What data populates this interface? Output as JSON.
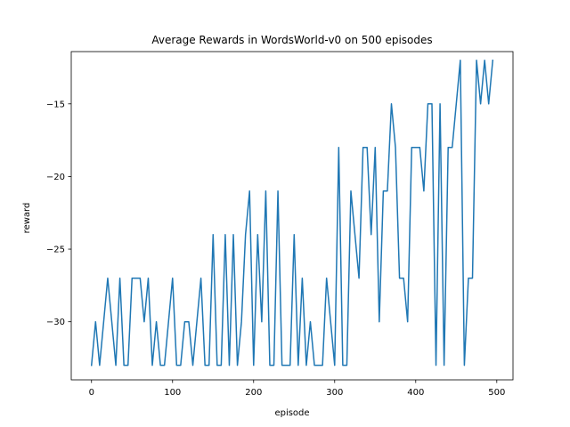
{
  "chart_data": {
    "type": "line",
    "title": "Average Rewards in WordsWorld-v0 on 500 episodes",
    "xlabel": "episode",
    "ylabel": "reward",
    "xlim": [
      -25,
      520
    ],
    "ylim": [
      -34,
      -11.4
    ],
    "xticks": [
      0,
      100,
      200,
      300,
      400,
      500
    ],
    "yticks": [
      -30,
      -25,
      -20,
      -15
    ],
    "ytick_labels": [
      "−30",
      "−25",
      "−20",
      "−15"
    ],
    "grid": false,
    "color": "#1f77b4",
    "series": [
      {
        "x": [
          0,
          5,
          10,
          15,
          20,
          25,
          30,
          35,
          40,
          45,
          50,
          55,
          60,
          65,
          70,
          75,
          80,
          85,
          90,
          95,
          100,
          105,
          110,
          115,
          120,
          125,
          130,
          135,
          140,
          145,
          150,
          155,
          160,
          165,
          170,
          175,
          180,
          185,
          190,
          195,
          200,
          205,
          210,
          215,
          220,
          225,
          230,
          235,
          240,
          245,
          250,
          255,
          260,
          265,
          270,
          275,
          280,
          285,
          290,
          295,
          300,
          305,
          310,
          315,
          320,
          325,
          330,
          335,
          340,
          345,
          350,
          355,
          360,
          365,
          370,
          375,
          380,
          385,
          390,
          395,
          400,
          405,
          410,
          415,
          420,
          425,
          430,
          435,
          440,
          445,
          450,
          455,
          460,
          465,
          470,
          475,
          480,
          485,
          490,
          495
        ],
        "y": [
          -33,
          -30,
          -33,
          -30,
          -27,
          -30,
          -33,
          -27,
          -33,
          -33,
          -27,
          -27,
          -27,
          -30,
          -27,
          -33,
          -30,
          -33,
          -33,
          -30,
          -27,
          -33,
          -33,
          -30,
          -30,
          -33,
          -30,
          -27,
          -33,
          -33,
          -24,
          -33,
          -33,
          -24,
          -33,
          -24,
          -33,
          -30,
          -24,
          -21,
          -33,
          -24,
          -30,
          -21,
          -33,
          -33,
          -21,
          -33,
          -33,
          -33,
          -24,
          -33,
          -27,
          -33,
          -30,
          -33,
          -33,
          -33,
          -27,
          -30,
          -33,
          -18,
          -33,
          -33,
          -21,
          -24,
          -27,
          -18,
          -18,
          -24,
          -18,
          -30,
          -21,
          -21,
          -15,
          -18,
          -27,
          -27,
          -30,
          -18,
          -18,
          -18,
          -21,
          -15,
          -15,
          -33,
          -15,
          -33,
          -18,
          -18,
          -15,
          -12,
          -33,
          -27,
          -27,
          -12,
          -15,
          -12,
          -15,
          -12
        ]
      }
    ]
  }
}
